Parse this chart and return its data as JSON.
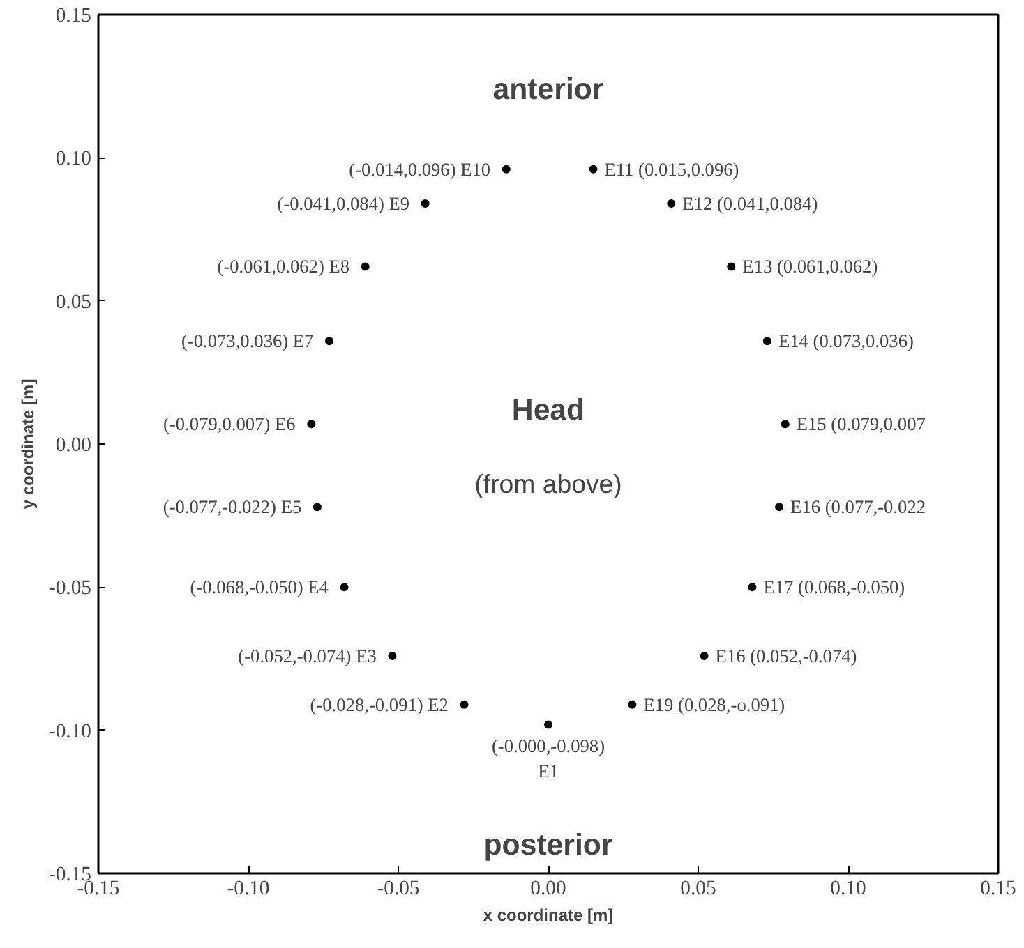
{
  "chart_data": {
    "type": "scatter",
    "xlabel": "x coordinate [m]",
    "ylabel": "y coordinate [m]",
    "xlim": [
      -0.15,
      0.15
    ],
    "ylim": [
      -0.15,
      0.15
    ],
    "xticks": [
      {
        "value": -0.15,
        "label": "-0.15"
      },
      {
        "value": -0.1,
        "label": "-0.10"
      },
      {
        "value": -0.05,
        "label": "-0.05"
      },
      {
        "value": 0,
        "label": "0.00"
      },
      {
        "value": 0.05,
        "label": "0.05"
      },
      {
        "value": 0.1,
        "label": "0.10"
      },
      {
        "value": 0.15,
        "label": "0.15"
      }
    ],
    "yticks": [
      {
        "value": -0.15,
        "label": "-0.15"
      },
      {
        "value": -0.1,
        "label": "-0.10"
      },
      {
        "value": -0.05,
        "label": "-0.05"
      },
      {
        "value": 0,
        "label": "0.00"
      },
      {
        "value": 0.05,
        "label": "0.05"
      },
      {
        "value": 0.1,
        "label": "0.10"
      },
      {
        "value": 0.15,
        "label": "0.15"
      }
    ],
    "grid": false,
    "marker": "circle",
    "series": [
      {
        "color": "#000000",
        "x": [
          0,
          -0.028,
          -0.052,
          -0.068,
          -0.077,
          -0.079,
          -0.073,
          -0.061,
          -0.041,
          -0.014,
          0.015,
          0.041,
          0.061,
          0.073,
          0.079,
          0.077,
          0.068,
          0.052,
          0.028
        ],
        "values": [
          -0.098,
          -0.091,
          -0.074,
          -0.05,
          -0.022,
          0.007,
          0.036,
          0.062,
          0.084,
          0.096,
          0.096,
          0.084,
          0.062,
          0.036,
          0.007,
          -0.022,
          -0.05,
          -0.074,
          -0.091
        ]
      }
    ],
    "annotations": [
      {
        "text": "(-0.000,-0.098)\nE1",
        "x": 0,
        "y": -0.098
      },
      {
        "text": "(-0.028,-0.091)  E2",
        "x": -0.028,
        "y": -0.091
      },
      {
        "text": "(-0.052,-0.074)  E3",
        "x": -0.052,
        "y": -0.074
      },
      {
        "text": "(-0.068,-0.050)  E4",
        "x": -0.068,
        "y": -0.05
      },
      {
        "text": "(-0.077,-0.022)  E5",
        "x": -0.077,
        "y": -0.022
      },
      {
        "text": "(-0.079,0.007)  E6",
        "x": -0.079,
        "y": 0.007
      },
      {
        "text": "(-0.073,0.036)  E7",
        "x": -0.073,
        "y": 0.036
      },
      {
        "text": "(-0.061,0.062)  E8",
        "x": -0.061,
        "y": 0.062
      },
      {
        "text": "(-0.041,0.084)  E9",
        "x": -0.041,
        "y": 0.084
      },
      {
        "text": "(-0.014,0.096)  E10",
        "x": -0.014,
        "y": 0.096
      },
      {
        "text": "E11  (0.015,0.096)",
        "x": 0.015,
        "y": 0.096
      },
      {
        "text": "E12  (0.041,0.084)",
        "x": 0.041,
        "y": 0.084
      },
      {
        "text": "E13  (0.061,0.062)",
        "x": 0.061,
        "y": 0.062
      },
      {
        "text": "E14  (0.073,0.036)",
        "x": 0.073,
        "y": 0.036
      },
      {
        "text": "E15  (0.079,0.007",
        "x": 0.079,
        "y": 0.007
      },
      {
        "text": "E16  (0.077,-0.022",
        "x": 0.077,
        "y": -0.022
      },
      {
        "text": "E17  (0.068,-0.050)",
        "x": 0.068,
        "y": -0.05
      },
      {
        "text": "E16  (0.052,-0.074)",
        "x": 0.052,
        "y": -0.074
      },
      {
        "text": "E19  (0.028,-o.091)",
        "x": 0.028,
        "y": -0.091
      },
      "anterior",
      "Head",
      "(from above)",
      "posterior"
    ]
  }
}
